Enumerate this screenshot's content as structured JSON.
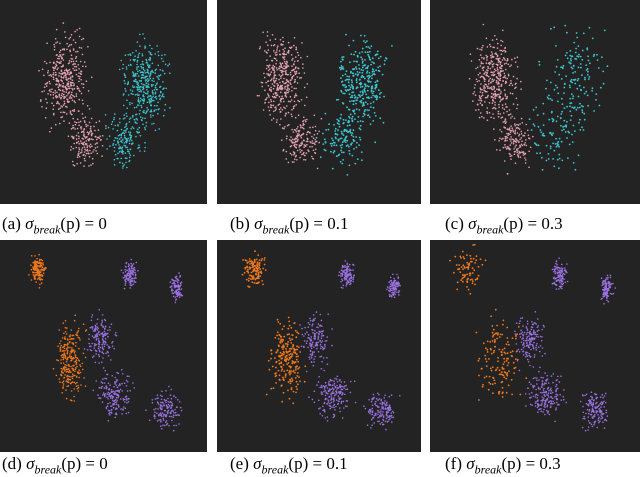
{
  "panels": [
    {
      "caption": {
        "label": "(a)",
        "symbol": "σ",
        "subscript": "break",
        "expression": "(p) = 0"
      }
    },
    {
      "caption": {
        "label": "(b)",
        "symbol": "σ",
        "subscript": "break",
        "expression": "(p) = 0.1"
      }
    },
    {
      "caption": {
        "label": "(c)",
        "symbol": "σ",
        "subscript": "break",
        "expression": "(p) = 0.3"
      }
    },
    {
      "caption": {
        "label": "(d)",
        "symbol": "σ",
        "subscript": "break",
        "expression": "(p) = 0"
      }
    },
    {
      "caption": {
        "label": "(e)",
        "symbol": "σ",
        "subscript": "break",
        "expression": "(p) = 0.1"
      }
    },
    {
      "caption": {
        "label": "(f)",
        "symbol": "σ",
        "subscript": "break",
        "expression": "(p) = 0.3"
      }
    }
  ]
}
